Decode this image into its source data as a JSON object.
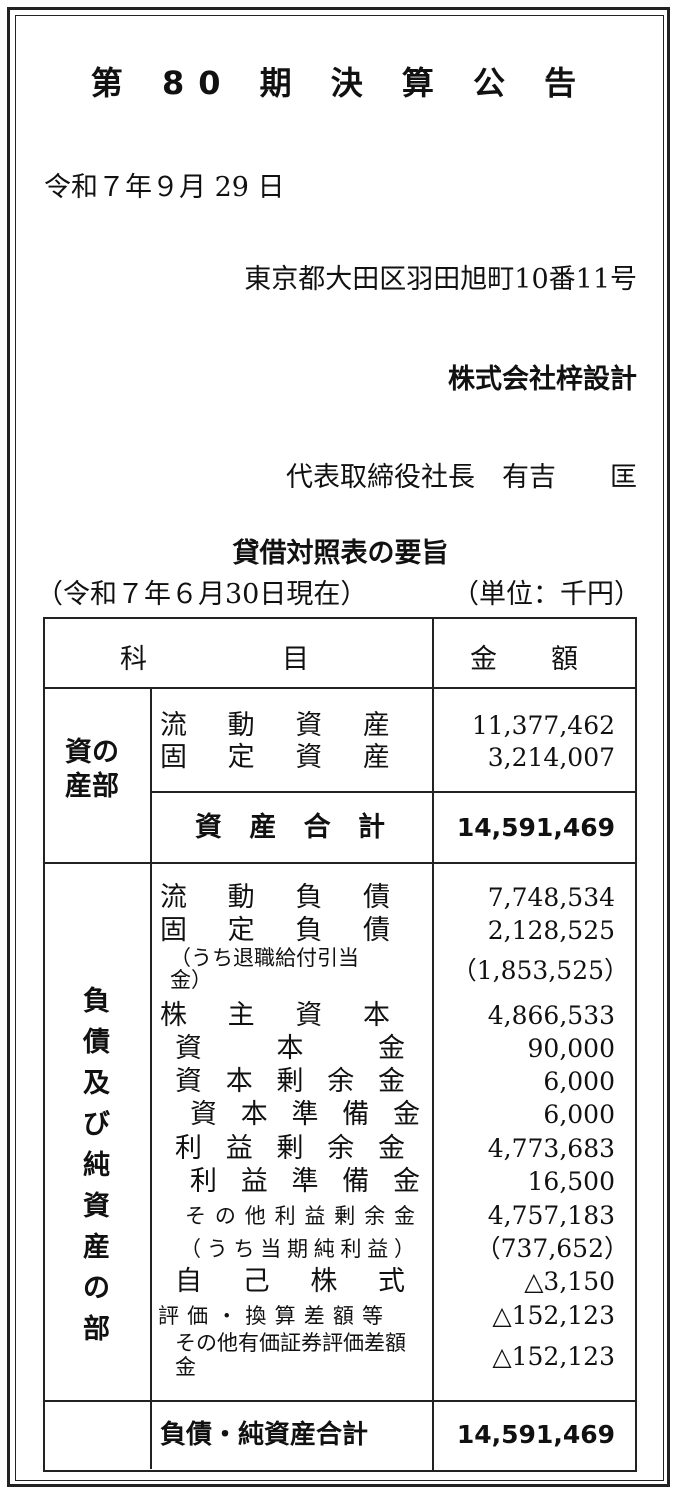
{
  "header": {
    "title": "第 80 期 決 算 公 告",
    "date": "令和７年９月 29 日",
    "address": "東京都大田区羽田旭町10番11号",
    "company": "株式会社梓設計",
    "representative": "代表取締役社長　有吉　　匡"
  },
  "summary": {
    "title": "貸借対照表の要旨",
    "as_of": "（令和７年６月30日現在）",
    "unit": "（単位：千円）"
  },
  "table": {
    "col_item": "科　　　　　目",
    "col_amount": "金　　額",
    "assets_section": "資の産部",
    "assets_section_l1": "資の",
    "assets_section_l2": "産部",
    "assets": [
      {
        "label": "流動資産",
        "amount": "11,377,462"
      },
      {
        "label": "固定資産",
        "amount": "3,214,007"
      }
    ],
    "assets_total": {
      "label": "資産合計",
      "amount": "14,591,469"
    },
    "liab_section": "負債及び純資産の部",
    "liabilities": [
      {
        "label": "流動負債",
        "amount": "7,748,534"
      },
      {
        "label": "固定負債",
        "amount": "2,128,525"
      },
      {
        "label": "（うち退職給付引当金）",
        "amount": "（1,853,525）"
      },
      {
        "label": "株主資本",
        "amount": "4,866,533"
      },
      {
        "label": "資本金",
        "amount": "90,000"
      },
      {
        "label": "資本剰余金",
        "amount": "6,000"
      },
      {
        "label": "資本準備金",
        "amount": "6,000"
      },
      {
        "label": "利益剰余金",
        "amount": "4,773,683"
      },
      {
        "label": "利益準備金",
        "amount": "16,500"
      },
      {
        "label": "その他利益剰余金",
        "amount": "4,757,183"
      },
      {
        "label": "（うち当期純利益）",
        "amount": "（737,652）"
      },
      {
        "label": "自己株式",
        "amount": "△3,150"
      },
      {
        "label": "評価・換算差額等",
        "amount": "△152,123"
      },
      {
        "label": "その他有価証券評価差額金",
        "amount": "△152,123"
      }
    ],
    "liab_total": {
      "label": "負債・純資産合計",
      "amount": "14,591,469"
    }
  }
}
